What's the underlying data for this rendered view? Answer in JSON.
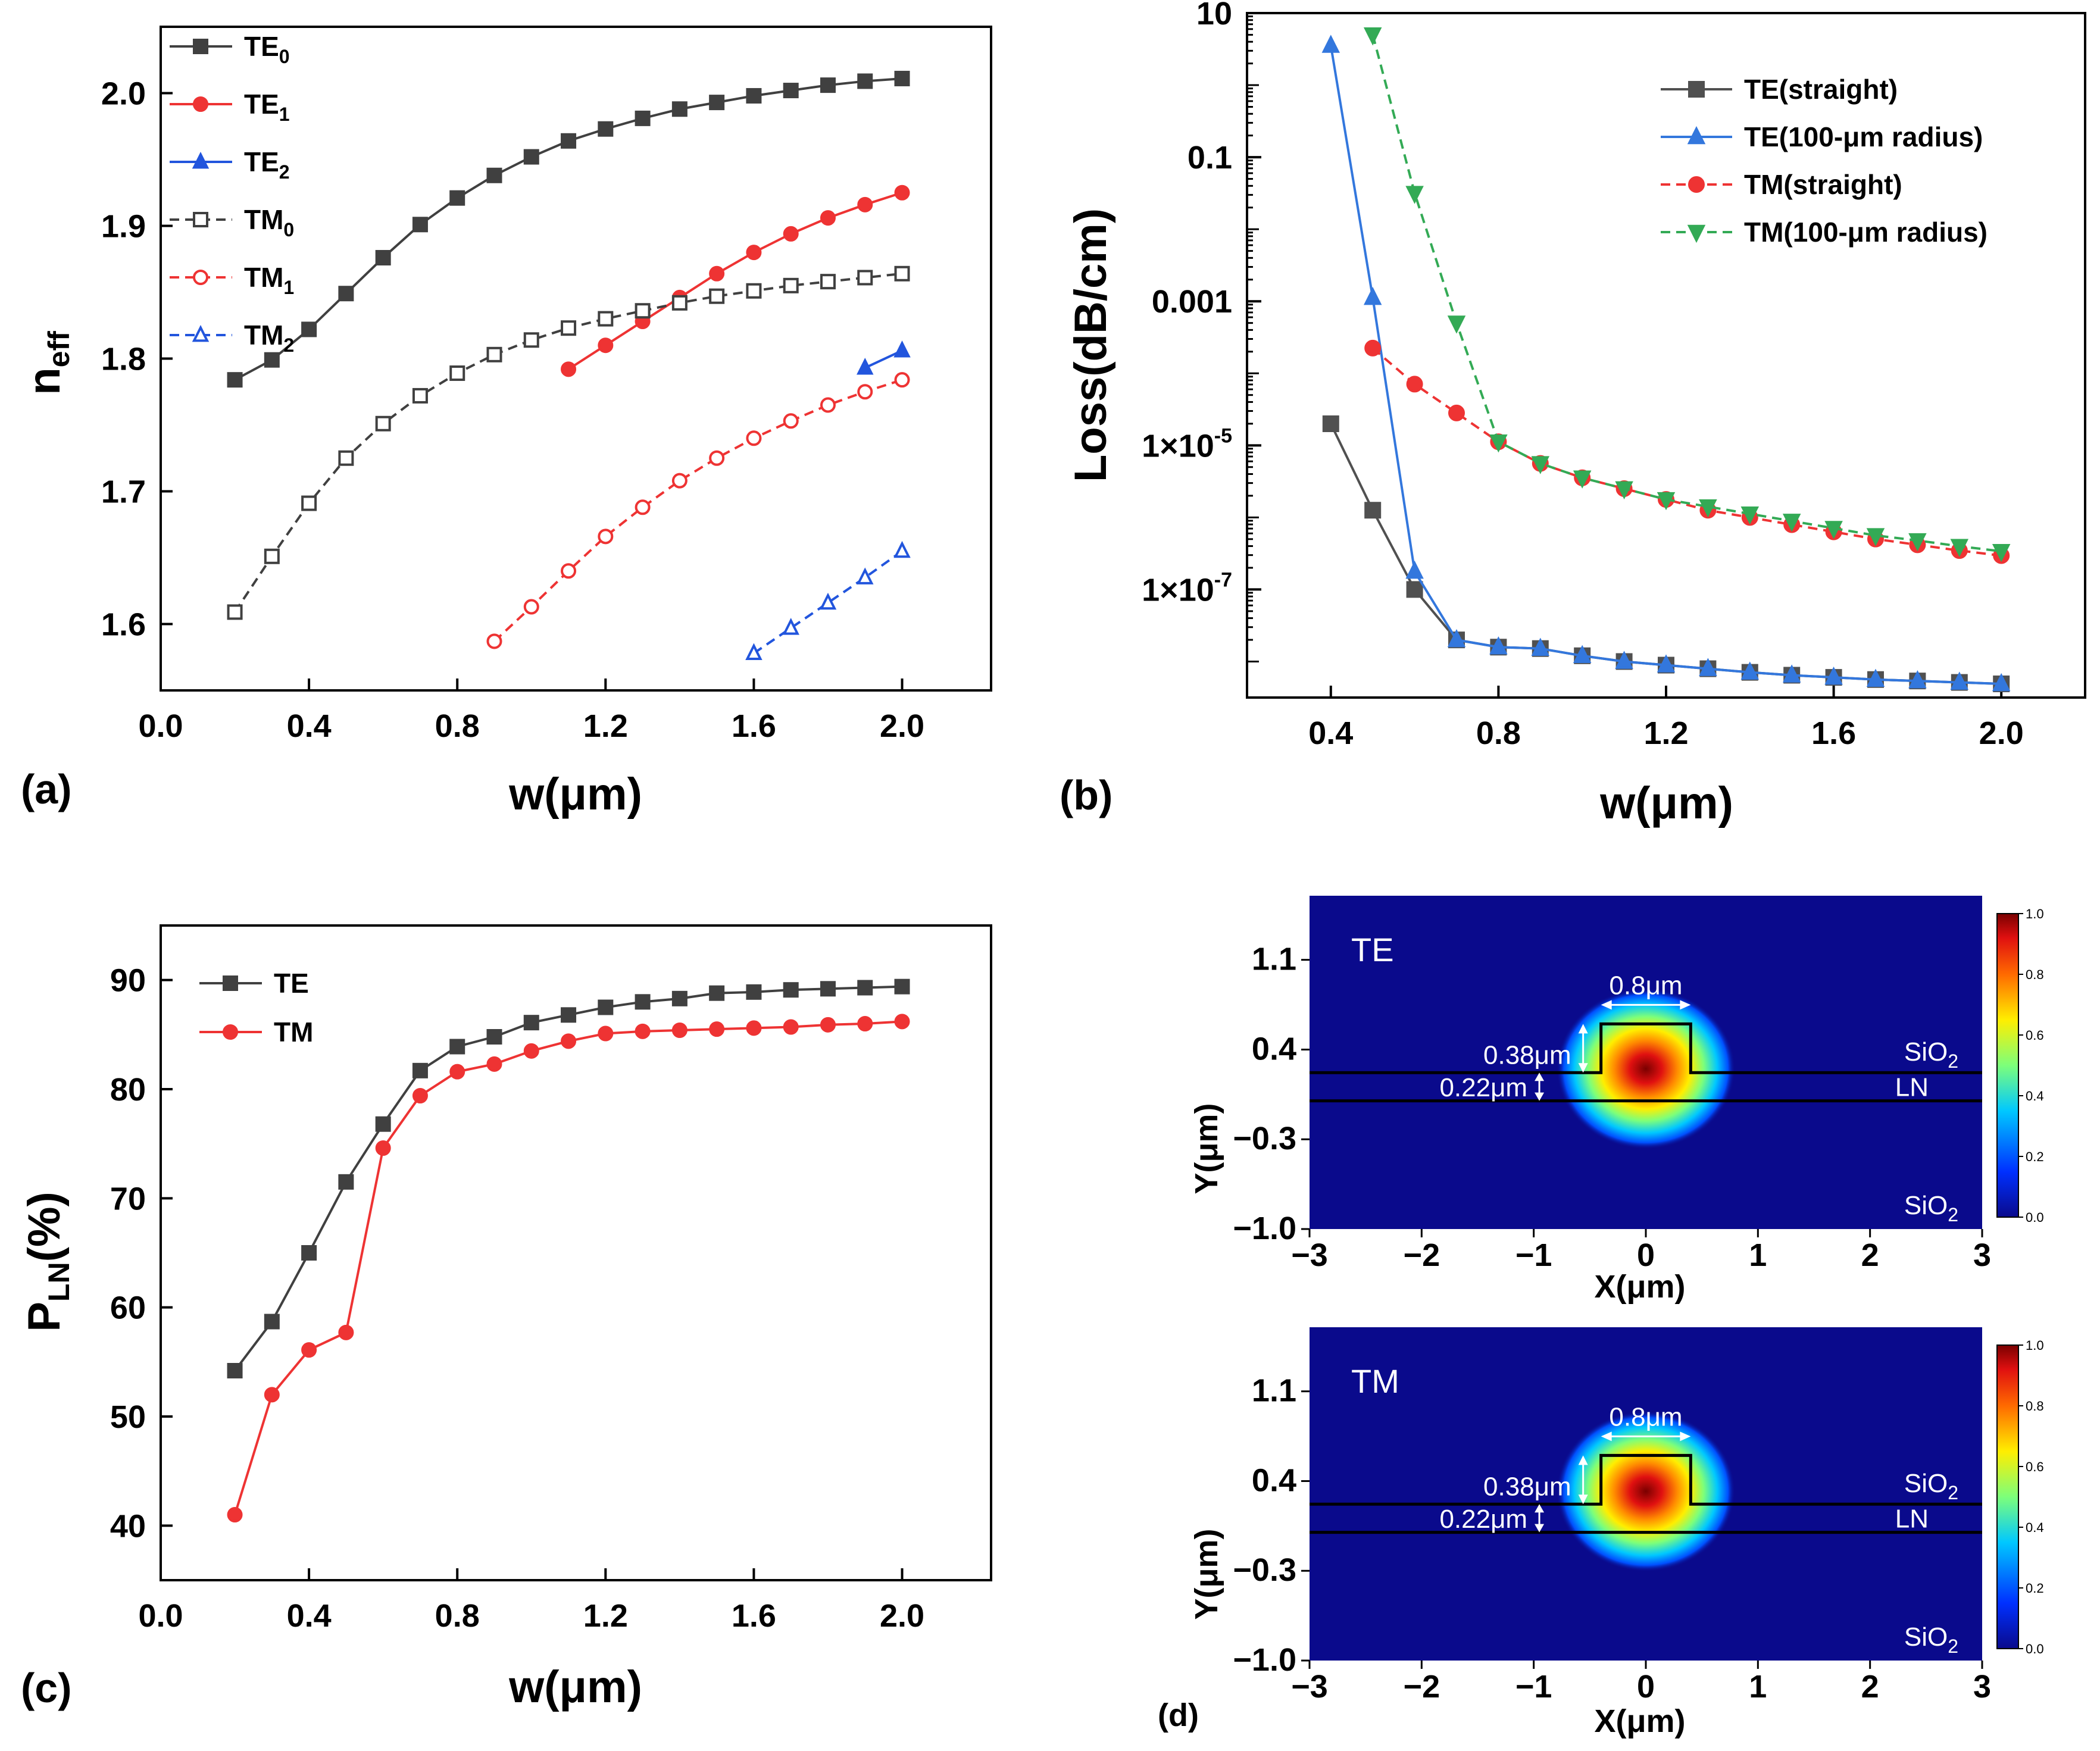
{
  "chart_data": [
    {
      "panel": "(a)",
      "type": "line",
      "xlabel": "w(μm)",
      "ylabel_main": "n",
      "ylabel_sub": "eff",
      "xlim": [
        0.0,
        2.24
      ],
      "ylim": [
        1.55,
        2.05
      ],
      "xticks": [
        "0.0",
        "0.4",
        "0.8",
        "1.2",
        "1.6",
        "2.0"
      ],
      "yticks": [
        "1.6",
        "1.7",
        "1.8",
        "1.9",
        "2.0"
      ],
      "series": [
        {
          "name": "TE",
          "sub": "0",
          "color": "#404040",
          "dashed": false,
          "marker": "square",
          "filled": true,
          "x": [
            0.2,
            0.3,
            0.4,
            0.5,
            0.6,
            0.7,
            0.8,
            0.9,
            1.0,
            1.1,
            1.2,
            1.3,
            1.4,
            1.5,
            1.6,
            1.7,
            1.8,
            1.9,
            2.0
          ],
          "y": [
            1.784,
            1.799,
            1.822,
            1.849,
            1.876,
            1.901,
            1.921,
            1.938,
            1.952,
            1.964,
            1.973,
            1.981,
            1.988,
            1.993,
            1.998,
            2.002,
            2.006,
            2.009,
            2.011
          ]
        },
        {
          "name": "TE",
          "sub": "1",
          "color": "#ee3333",
          "dashed": false,
          "marker": "circle",
          "filled": true,
          "x": [
            1.1,
            1.2,
            1.3,
            1.4,
            1.5,
            1.6,
            1.7,
            1.8,
            1.9,
            2.0
          ],
          "y": [
            1.792,
            1.81,
            1.828,
            1.846,
            1.864,
            1.88,
            1.894,
            1.906,
            1.916,
            1.925
          ]
        },
        {
          "name": "TE",
          "sub": "2",
          "color": "#2255dd",
          "dashed": false,
          "marker": "triangle",
          "filled": true,
          "x": [
            1.9,
            2.0
          ],
          "y": [
            1.793,
            1.806
          ]
        },
        {
          "name": "TM",
          "sub": "0",
          "color": "#404040",
          "dashed": true,
          "marker": "square",
          "filled": false,
          "x": [
            0.2,
            0.3,
            0.4,
            0.5,
            0.6,
            0.7,
            0.8,
            0.9,
            1.0,
            1.1,
            1.2,
            1.3,
            1.4,
            1.5,
            1.6,
            1.7,
            1.8,
            1.9,
            2.0
          ],
          "y": [
            1.609,
            1.651,
            1.691,
            1.725,
            1.751,
            1.772,
            1.789,
            1.803,
            1.814,
            1.823,
            1.83,
            1.836,
            1.842,
            1.847,
            1.851,
            1.855,
            1.858,
            1.861,
            1.864
          ]
        },
        {
          "name": "TM",
          "sub": "1",
          "color": "#ee3333",
          "dashed": true,
          "marker": "circle",
          "filled": false,
          "x": [
            0.9,
            1.0,
            1.1,
            1.2,
            1.3,
            1.4,
            1.5,
            1.6,
            1.7,
            1.8,
            1.9,
            2.0
          ],
          "y": [
            1.587,
            1.613,
            1.64,
            1.666,
            1.688,
            1.708,
            1.725,
            1.74,
            1.753,
            1.765,
            1.775,
            1.784
          ]
        },
        {
          "name": "TM",
          "sub": "2",
          "color": "#2255dd",
          "dashed": true,
          "marker": "triangle",
          "filled": false,
          "x": [
            1.6,
            1.7,
            1.8,
            1.9,
            2.0
          ],
          "y": [
            1.578,
            1.597,
            1.616,
            1.635,
            1.655
          ]
        }
      ]
    },
    {
      "panel": "(b)",
      "type": "line",
      "yscale": "log",
      "xlabel": "w(μm)",
      "ylabel": "Loss(dB/cm)",
      "xlim": [
        0.2,
        2.2
      ],
      "ylim_log10": [
        -8.5,
        1.0
      ],
      "xticks": [
        "0.4",
        "0.8",
        "1.2",
        "1.6",
        "2.0"
      ],
      "yticks": [
        {
          "label": "10",
          "exp": null,
          "log10": 1
        },
        {
          "label": "0.1",
          "exp": null,
          "log10": -1
        },
        {
          "label": "0.001",
          "exp": null,
          "log10": -3
        },
        {
          "label": "1×10",
          "exp": "-5",
          "log10": -5
        },
        {
          "label": "1×10",
          "exp": "-7",
          "log10": -7
        }
      ],
      "series": [
        {
          "name": "TE(straight)",
          "color": "#505050",
          "dashed": false,
          "marker": "square",
          "x": [
            0.4,
            0.5,
            0.6,
            0.7,
            0.8,
            0.9,
            1.0,
            1.1,
            1.2,
            1.3,
            1.4,
            1.5,
            1.6,
            1.7,
            1.8,
            1.9,
            2.0
          ],
          "log10": [
            -4.7,
            -5.9,
            -7.0,
            -7.7,
            -7.8,
            -7.82,
            -7.92,
            -8.0,
            -8.05,
            -8.1,
            -8.15,
            -8.19,
            -8.22,
            -8.25,
            -8.27,
            -8.29,
            -8.31
          ]
        },
        {
          "name": "TE(100-μm radius)",
          "color": "#3377dd",
          "dashed": false,
          "marker": "triangle",
          "x": [
            0.4,
            0.5,
            0.6,
            0.7,
            0.8,
            0.9,
            1.0,
            1.1,
            1.2,
            1.3,
            1.4,
            1.5,
            1.6,
            1.7,
            1.8,
            1.9,
            2.0
          ],
          "log10": [
            0.55,
            -2.95,
            -6.75,
            -7.7,
            -7.8,
            -7.82,
            -7.92,
            -8.0,
            -8.05,
            -8.1,
            -8.15,
            -8.19,
            -8.22,
            -8.25,
            -8.27,
            -8.29,
            -8.31
          ]
        },
        {
          "name": "TM(straight)",
          "color": "#ee3333",
          "dashed": true,
          "marker": "circle",
          "x": [
            0.5,
            0.6,
            0.7,
            0.8,
            0.9,
            1.0,
            1.1,
            1.2,
            1.3,
            1.4,
            1.5,
            1.6,
            1.7,
            1.8,
            1.9,
            2.0
          ],
          "log10": [
            -3.65,
            -4.15,
            -4.55,
            -4.95,
            -5.25,
            -5.45,
            -5.6,
            -5.75,
            -5.9,
            -6.0,
            -6.1,
            -6.2,
            -6.3,
            -6.38,
            -6.46,
            -6.53
          ]
        },
        {
          "name": "TM(100-μm radius)",
          "color": "#33aa55",
          "dashed": true,
          "marker": "triangle-down",
          "x": [
            0.5,
            0.6,
            0.7,
            0.8,
            0.9,
            1.0,
            1.1,
            1.2,
            1.3,
            1.4,
            1.5,
            1.6,
            1.7,
            1.8,
            1.9,
            2.0
          ],
          "log10": [
            0.7,
            -1.5,
            -3.3,
            -4.95,
            -5.25,
            -5.45,
            -5.6,
            -5.75,
            -5.85,
            -5.95,
            -6.05,
            -6.15,
            -6.25,
            -6.32,
            -6.4,
            -6.47
          ]
        }
      ]
    },
    {
      "panel": "(c)",
      "type": "line",
      "xlabel": "w(μm)",
      "ylabel_main": "P",
      "ylabel_sub": "LN",
      "ylabel_tail": "(%)",
      "xlim": [
        0.0,
        2.24
      ],
      "ylim": [
        35,
        95
      ],
      "xticks": [
        "0.0",
        "0.4",
        "0.8",
        "1.2",
        "1.6",
        "2.0"
      ],
      "yticks": [
        "40",
        "50",
        "60",
        "70",
        "80",
        "90"
      ],
      "series": [
        {
          "name": "TE",
          "color": "#404040",
          "marker": "square",
          "x": [
            0.2,
            0.3,
            0.4,
            0.5,
            0.6,
            0.7,
            0.8,
            0.9,
            1.0,
            1.1,
            1.2,
            1.3,
            1.4,
            1.5,
            1.6,
            1.7,
            1.8,
            1.9,
            2.0
          ],
          "y": [
            54.2,
            58.7,
            65.0,
            71.5,
            76.8,
            81.7,
            83.9,
            84.8,
            86.1,
            86.8,
            87.5,
            88.0,
            88.3,
            88.8,
            88.9,
            89.1,
            89.2,
            89.3,
            89.4
          ]
        },
        {
          "name": "TM",
          "color": "#ee3333",
          "marker": "circle",
          "x": [
            0.2,
            0.3,
            0.4,
            0.5,
            0.6,
            0.7,
            0.8,
            0.9,
            1.0,
            1.1,
            1.2,
            1.3,
            1.4,
            1.5,
            1.6,
            1.7,
            1.8,
            1.9,
            2.0
          ],
          "y": [
            41.0,
            52.0,
            56.1,
            57.7,
            74.6,
            79.4,
            81.6,
            82.3,
            83.5,
            84.4,
            85.1,
            85.3,
            85.4,
            85.5,
            85.6,
            85.7,
            85.9,
            86.0,
            86.2
          ]
        }
      ]
    },
    {
      "panel": "(d)",
      "type": "heatmap",
      "xlabel": "X(μm)",
      "ylabel": "Y(μm)",
      "xlim": [
        -3,
        3
      ],
      "ylim": [
        -1.0,
        1.6
      ],
      "xticks": [
        "−3",
        "−2",
        "−1",
        "0",
        "1",
        "2",
        "3"
      ],
      "yticks": [
        "1.1",
        "0.4",
        "−0.3",
        "−1.0"
      ],
      "colorbar_ticks": [
        "1.0",
        "0.8",
        "0.6",
        "0.4",
        "0.2",
        "0.0"
      ],
      "colorbar_range": [
        0.0,
        1.0
      ],
      "rib_width_label": "0.8μm",
      "rib_height_label": "0.38μm",
      "slab_height_label": "0.22μm",
      "region_labels": {
        "top_cladding": "SiO",
        "core": "LN",
        "bottom_cladding": "SiO",
        "sub": "2"
      },
      "maps": [
        {
          "mode": "TE",
          "mode_center": [
            0.0,
            0.25
          ]
        },
        {
          "mode": "TM",
          "mode_center": [
            0.0,
            0.32
          ]
        }
      ]
    }
  ]
}
